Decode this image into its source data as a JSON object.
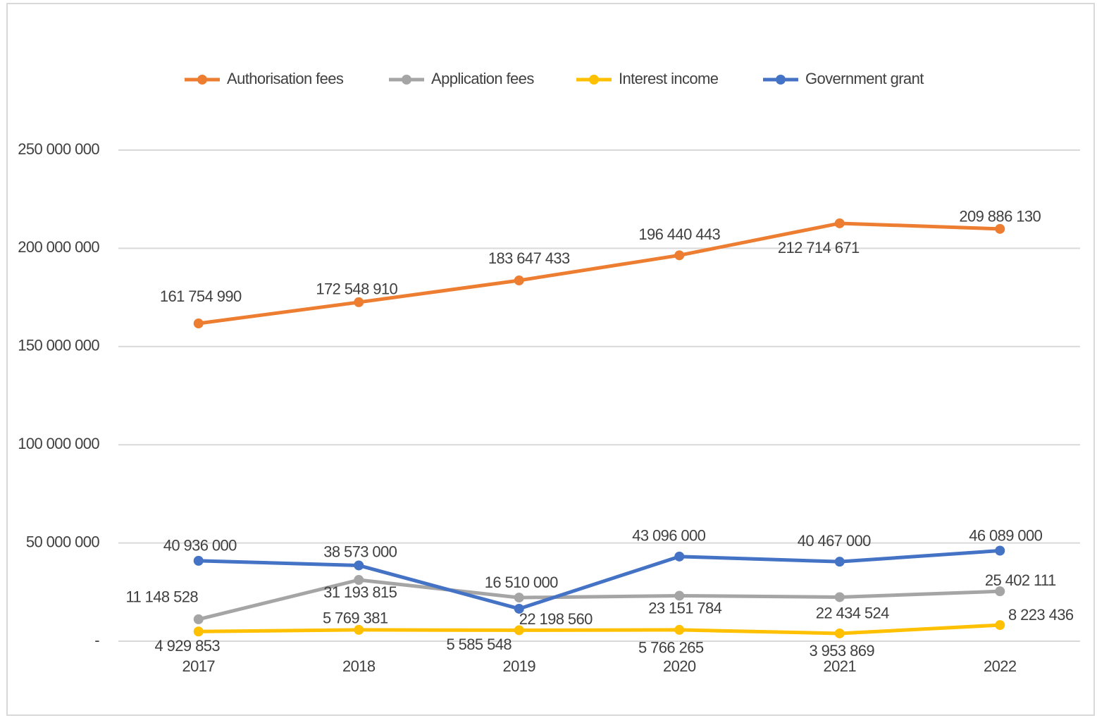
{
  "chart_data": {
    "type": "line",
    "categories": [
      "2017",
      "2018",
      "2019",
      "2020",
      "2021",
      "2022"
    ],
    "series": [
      {
        "name": "Authorisation fees",
        "color": "#ed7d31",
        "values": [
          161754990,
          172548910,
          183647433,
          196440443,
          212714671,
          209886130
        ],
        "value_labels": [
          "161 754 990",
          "172 548 910",
          "183 647 433",
          "196 440 443",
          "212 714 671",
          "209 886 130"
        ]
      },
      {
        "name": "Application fees",
        "color": "#a5a5a5",
        "values": [
          11148528,
          31193815,
          22198560,
          23151784,
          22434524,
          25402111
        ],
        "value_labels": [
          "11 148 528",
          "31 193 815",
          "22 198 560",
          "23 151 784",
          "22 434 524",
          "25 402 111"
        ]
      },
      {
        "name": "Interest income",
        "color": "#ffc000",
        "values": [
          4929853,
          5769381,
          5585548,
          5766265,
          3953869,
          8223436
        ],
        "value_labels": [
          "4 929 853",
          "5 769 381",
          "5 585 548",
          "5 766 265",
          "3 953 869",
          "8 223 436"
        ]
      },
      {
        "name": "Government grant",
        "color": "#4472c4",
        "values": [
          40936000,
          38573000,
          16510000,
          43096000,
          40467000,
          46089000
        ],
        "value_labels": [
          "40 936 000",
          "38 573 000",
          "16 510 000",
          "43 096 000",
          "40 467 000",
          "46 089 000"
        ]
      }
    ],
    "ylim": [
      0,
      250000000
    ],
    "yticks": [
      {
        "value": 0,
        "label": "-"
      },
      {
        "value": 50000000,
        "label": "50 000 000"
      },
      {
        "value": 100000000,
        "label": "100 000 000"
      },
      {
        "value": 150000000,
        "label": "150 000 000"
      },
      {
        "value": 200000000,
        "label": "200 000 000"
      },
      {
        "value": 250000000,
        "label": "250 000 000"
      }
    ],
    "grid": true,
    "legend": "top"
  }
}
